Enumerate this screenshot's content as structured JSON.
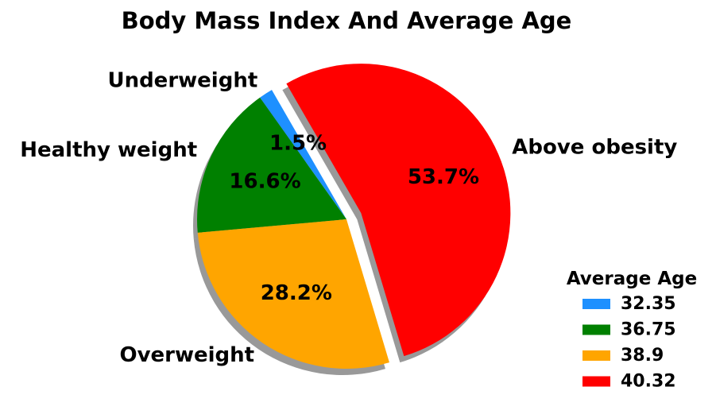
{
  "chart_data": {
    "type": "pie",
    "title": "Body Mass Index And Average Age",
    "categories": [
      "Underweight",
      "Healthy weight",
      "Overweight",
      "Above obesity"
    ],
    "values": [
      1.5,
      16.6,
      28.2,
      53.7
    ],
    "percent_labels": [
      "1.5%",
      "16.6%",
      "28.2%",
      "53.7%"
    ],
    "colors": [
      "#1e90ff",
      "#008000",
      "#ffa500",
      "#ff0000"
    ],
    "exploded": [
      false,
      false,
      false,
      true
    ],
    "shadow": true,
    "start_angle_deg": 120,
    "legend": {
      "title": "Average Age",
      "entries": [
        "32.35",
        "36.75",
        "38.9",
        "40.32"
      ],
      "placement": "lower-right"
    }
  }
}
